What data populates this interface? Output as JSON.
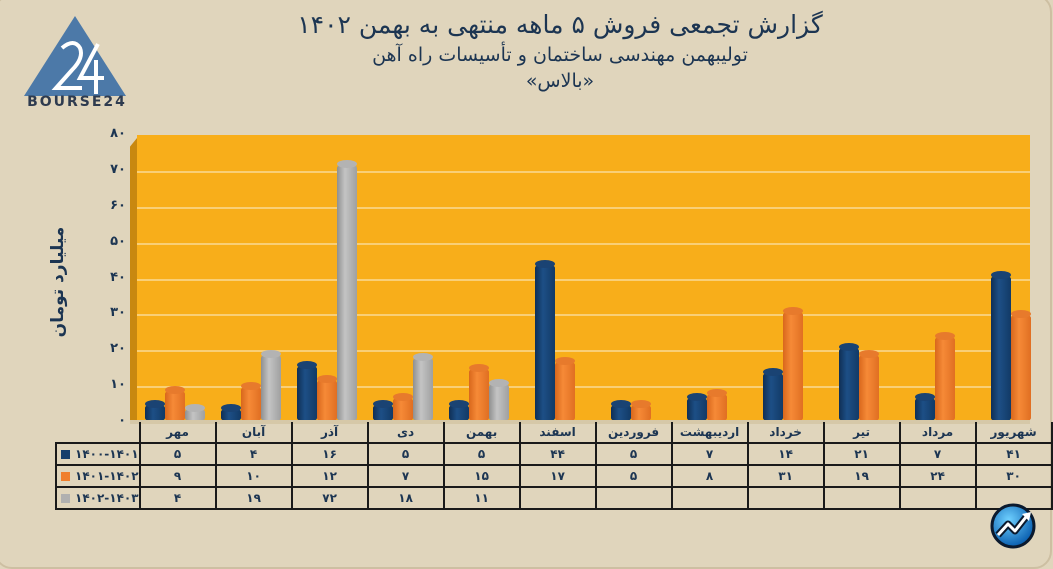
{
  "header": {
    "logo_text": "BOURSE24",
    "title": "گزارش تجمعی فروش ۵ ماهه منتهی به بهمن ۱۴۰۲",
    "subtitle": "تولیبهمن مهندسی ساختمان و تأسیسات راه آهن",
    "ticker": "«بالاس»"
  },
  "colors": {
    "background": "#e0d5bc",
    "plot_background": "#f8ae1a",
    "series_1400_1401": "#163f6c",
    "series_1401_1402": "#f07f2d",
    "series_1402_1403": "#b0b0b0",
    "text": "#1c3552"
  },
  "axis": {
    "ylabel": "میلیارد تومان",
    "yticks": [
      "۰",
      "۱۰",
      "۲۰",
      "۳۰",
      "۴۰",
      "۵۰",
      "۶۰",
      "۷۰",
      "۸۰"
    ]
  },
  "table": {
    "months": [
      "مهر",
      "آبان",
      "آذر",
      "دی",
      "بهمن",
      "اسفند",
      "فروردین",
      "اردیبهشت",
      "خرداد",
      "تیر",
      "مرداد",
      "شهریور"
    ],
    "rows": [
      {
        "label": "۱۴۰۰-۱۴۰۱",
        "values": [
          "۵",
          "۴",
          "۱۶",
          "۵",
          "۵",
          "۴۴",
          "۵",
          "۷",
          "۱۴",
          "۲۱",
          "۷",
          "۴۱"
        ]
      },
      {
        "label": "۱۴۰۱-۱۴۰۲",
        "values": [
          "۹",
          "۱۰",
          "۱۲",
          "۷",
          "۱۵",
          "۱۷",
          "۵",
          "۸",
          "۳۱",
          "۱۹",
          "۲۴",
          "۳۰"
        ]
      },
      {
        "label": "۱۴۰۲-۱۴۰۳",
        "values": [
          "۴",
          "۱۹",
          "۷۲",
          "۱۸",
          "۱۱",
          "",
          "",
          "",
          "",
          "",
          "",
          ""
        ]
      }
    ]
  },
  "chart_data": {
    "type": "bar",
    "title": "گزارش تجمعی فروش ۵ ماهه منتهی به بهمن ۱۴۰۲",
    "subtitle": "تولیبهمن مهندسی ساختمان و تأسیسات راه آهن «بالاس»",
    "xlabel": "",
    "ylabel": "میلیارد تومان",
    "ylim": [
      0,
      80
    ],
    "grid": true,
    "legend_position": "table-left",
    "categories": [
      "مهر",
      "آبان",
      "آذر",
      "دی",
      "بهمن",
      "اسفند",
      "فروردین",
      "اردیبهشت",
      "خرداد",
      "تیر",
      "مرداد",
      "شهریور"
    ],
    "series": [
      {
        "name": "1400-1401",
        "color": "#163f6c",
        "values": [
          5,
          4,
          16,
          5,
          5,
          44,
          5,
          7,
          14,
          21,
          7,
          41
        ]
      },
      {
        "name": "1401-1402",
        "color": "#f07f2d",
        "values": [
          9,
          10,
          12,
          7,
          15,
          17,
          5,
          8,
          31,
          19,
          24,
          30
        ]
      },
      {
        "name": "1402-1403",
        "color": "#b0b0b0",
        "values": [
          4,
          19,
          72,
          18,
          11,
          null,
          null,
          null,
          null,
          null,
          null,
          null
        ]
      }
    ]
  }
}
